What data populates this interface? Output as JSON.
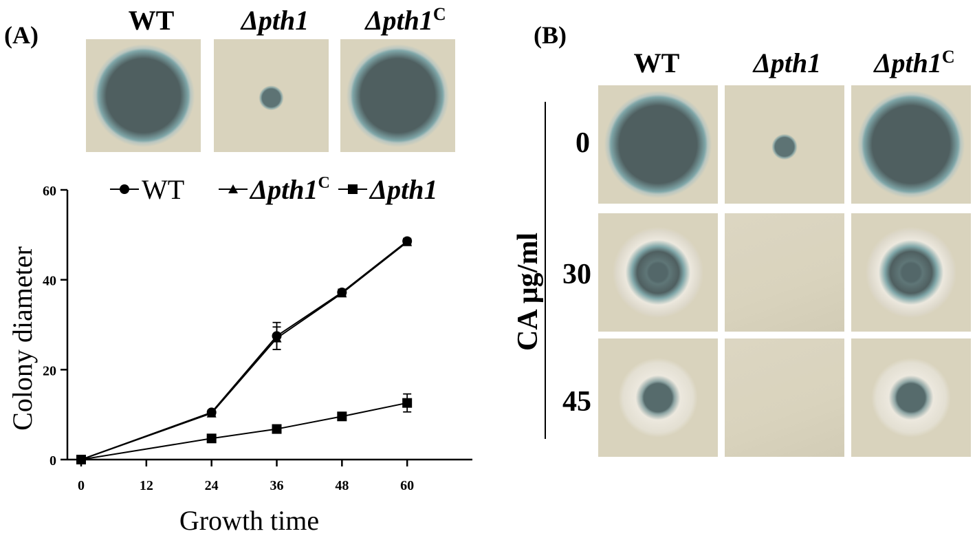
{
  "panelA": {
    "label": "(A)",
    "strains": [
      {
        "name": "WT",
        "sup": "",
        "italic": false
      },
      {
        "name": "Δpth1",
        "sup": "",
        "italic": true
      },
      {
        "name": "Δpth1",
        "sup": "C",
        "italic": true
      }
    ],
    "plates": [
      {
        "strain": "WT",
        "colony": "large"
      },
      {
        "strain": "Δpth1",
        "colony": "tiny"
      },
      {
        "strain": "Δpth1C",
        "colony": "large"
      }
    ]
  },
  "panelB": {
    "label": "(B)",
    "strains": [
      {
        "name": "WT",
        "sup": "",
        "italic": false
      },
      {
        "name": "Δpth1",
        "sup": "",
        "italic": true
      },
      {
        "name": "Δpth1",
        "sup": "C",
        "italic": true
      }
    ],
    "row_title": "CA μg/ml",
    "rows": [
      {
        "concentration": "0",
        "colonies": [
          "large-dark",
          "tiny",
          "large-dark"
        ]
      },
      {
        "concentration": "30",
        "colonies": [
          "medium-halo",
          "none",
          "medium-halo"
        ]
      },
      {
        "concentration": "45",
        "colonies": [
          "small-halo",
          "none",
          "small-halo"
        ]
      }
    ]
  },
  "colors": {
    "plate_bg": "#d9d3bd",
    "colony_dark": "#4f5f60",
    "colony_edge": "#7fa6a8",
    "halo": "#ece8de"
  },
  "chart_data": {
    "type": "line",
    "title": "",
    "xlabel": "Growth time",
    "ylabel": "Colony diameter",
    "x": [
      0,
      24,
      36,
      48,
      60
    ],
    "xticks": [
      "0",
      "12",
      "24",
      "36",
      "48",
      "60"
    ],
    "xtick_values": [
      0,
      12,
      24,
      36,
      48,
      60
    ],
    "yticks": [
      "0",
      "20",
      "40",
      "60"
    ],
    "ytick_values": [
      0,
      20,
      40,
      60
    ],
    "xlim": [
      0,
      72
    ],
    "ylim": [
      0,
      60
    ],
    "grid": false,
    "legend_position": "top",
    "series": [
      {
        "name": "WT",
        "sup": "",
        "marker": "circle",
        "values": [
          0,
          10.5,
          27.5,
          37.2,
          48.6
        ],
        "errors": [
          0,
          0.5,
          3.0,
          0.7,
          0.6
        ]
      },
      {
        "name": "Δpth1",
        "sup": "C",
        "marker": "triangle",
        "values": [
          0,
          10.3,
          27.0,
          37.0,
          48.4
        ],
        "errors": [
          0,
          0.5,
          2.5,
          0.6,
          0.6
        ]
      },
      {
        "name": "Δpth1",
        "sup": "",
        "marker": "square",
        "values": [
          0,
          4.7,
          6.8,
          9.6,
          12.6
        ],
        "errors": [
          0,
          0.4,
          0.5,
          0.5,
          2.0
        ]
      }
    ]
  }
}
